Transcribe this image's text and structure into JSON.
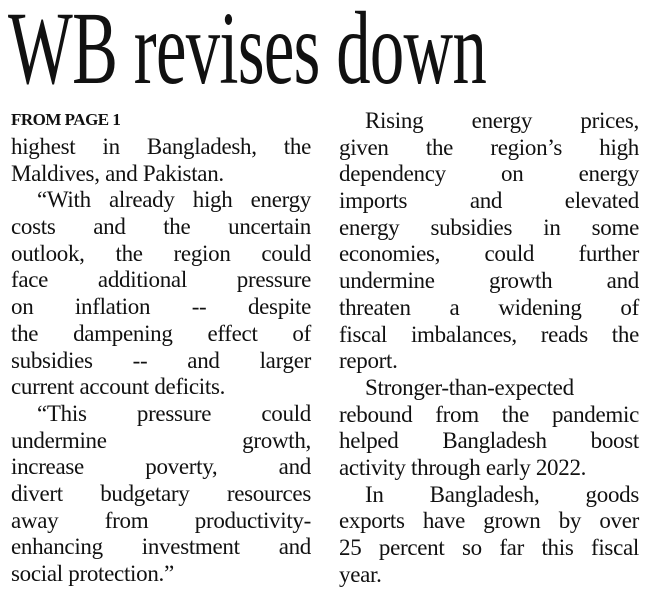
{
  "headline": "WB revises down",
  "kicker": "FROM PAGE 1",
  "left_column": [
    {
      "indent": false,
      "lines": [
        "highest in Bangladesh, the",
        "Maldives, and Pakistan."
      ]
    },
    {
      "indent": true,
      "lines": [
        "“With already high energy",
        "costs and the uncertain",
        "outlook, the region could",
        "face additional pressure",
        "on inflation -- despite",
        "the dampening effect of",
        "subsidies -- and larger",
        "current account deficits."
      ]
    },
    {
      "indent": true,
      "lines": [
        "“This pressure could",
        "undermine growth,",
        "increase poverty, and",
        "divert budgetary resources",
        "away from productivity-",
        "enhancing investment and",
        "social protection.”"
      ]
    }
  ],
  "right_column": [
    {
      "indent": true,
      "lines": [
        "Rising energy prices,",
        "given the region’s high",
        "dependency on energy",
        "imports and elevated",
        "energy subsidies in some",
        "economies, could further",
        "undermine growth and",
        "threaten a widening of",
        "fiscal imbalances, reads the",
        "report."
      ]
    },
    {
      "indent": true,
      "lines": [
        "Stronger-than-expected",
        "rebound from the pandemic",
        "helped Bangladesh boost",
        "activity through early 2022."
      ]
    },
    {
      "indent": true,
      "lines": [
        "In Bangladesh, goods",
        "exports have grown by over",
        "25 percent so far this fiscal",
        "year."
      ]
    }
  ]
}
